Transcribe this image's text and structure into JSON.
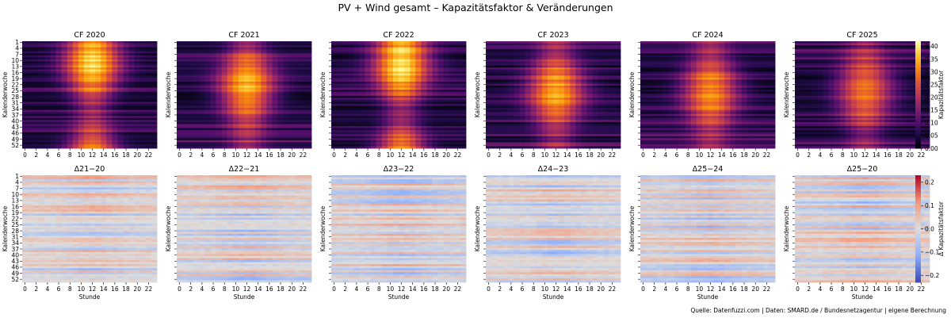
{
  "title": "PV + Wind gesamt – Kapazitätsfaktor & Veränderungen",
  "source": "Quelle: Datenfuzzi.com | Daten: SMARD.de / Bundesnetzagentur | eigene Berechnung",
  "colors": {
    "cf_map": "inferno",
    "delta_map": "coolwarm"
  },
  "chart_data": [
    {
      "type": "heatmap",
      "title": "CF 2020",
      "xlabel": "",
      "ylabel": "Kalenderwoche",
      "x_ticks": [
        "0",
        "2",
        "4",
        "6",
        "8",
        "10",
        "12",
        "14",
        "16",
        "18",
        "20",
        "22"
      ],
      "y_ticks": [
        "1",
        "4",
        "7",
        "10",
        "13",
        "16",
        "19",
        "22",
        "25",
        "28",
        "31",
        "34",
        "37",
        "40",
        "43",
        "46",
        "49",
        "52"
      ],
      "x_range": [
        0,
        23
      ],
      "y_range": [
        1,
        53
      ],
      "peak_hour": 12,
      "peak_week": 10,
      "peak_value": 0.4
    },
    {
      "type": "heatmap",
      "title": "CF 2021",
      "xlabel": "",
      "ylabel": "Kalenderwoche",
      "x_ticks": [
        "0",
        "2",
        "4",
        "6",
        "8",
        "10",
        "12",
        "14",
        "16",
        "18",
        "20",
        "22"
      ],
      "x_range": [
        0,
        23
      ],
      "y_range": [
        1,
        53
      ],
      "peak_hour": 12,
      "peak_week": 22,
      "peak_value": 0.36
    },
    {
      "type": "heatmap",
      "title": "CF 2022",
      "xlabel": "",
      "ylabel": "Kalenderwoche",
      "x_ticks": [
        "0",
        "2",
        "4",
        "6",
        "8",
        "10",
        "12",
        "14",
        "16",
        "18",
        "20",
        "22"
      ],
      "x_range": [
        0,
        23
      ],
      "y_range": [
        1,
        53
      ],
      "peak_hour": 12,
      "peak_week": 10,
      "peak_value": 0.41
    },
    {
      "type": "heatmap",
      "title": "CF 2023",
      "xlabel": "",
      "ylabel": "Kalenderwoche",
      "x_ticks": [
        "0",
        "2",
        "4",
        "6",
        "8",
        "10",
        "12",
        "14",
        "16",
        "18",
        "20",
        "22"
      ],
      "x_range": [
        0,
        23
      ],
      "y_range": [
        1,
        53
      ],
      "peak_hour": 12,
      "peak_week": 24,
      "peak_value": 0.34
    },
    {
      "type": "heatmap",
      "title": "CF 2024",
      "xlabel": "",
      "ylabel": "Kalenderwoche",
      "x_ticks": [
        "0",
        "2",
        "4",
        "6",
        "8",
        "10",
        "12",
        "14",
        "16",
        "18",
        "20",
        "22"
      ],
      "x_range": [
        0,
        23
      ],
      "y_range": [
        1,
        53
      ],
      "peak_hour": 12,
      "peak_week": 24,
      "peak_value": 0.32
    },
    {
      "type": "heatmap",
      "title": "CF 2025",
      "xlabel": "",
      "ylabel": "Kalenderwoche",
      "x_ticks": [
        "0",
        "2",
        "4",
        "6",
        "8",
        "10",
        "12",
        "14",
        "16",
        "18",
        "20",
        "22"
      ],
      "x_range": [
        0,
        23
      ],
      "y_range": [
        1,
        53
      ],
      "peak_hour": 12,
      "peak_week": 24,
      "peak_value": 0.3
    },
    {
      "type": "heatmap",
      "title": "Δ21−20",
      "xlabel": "Stunde",
      "ylabel": "Kalenderwoche",
      "x_ticks": [
        "0",
        "2",
        "4",
        "6",
        "8",
        "10",
        "12",
        "14",
        "16",
        "18",
        "20",
        "22"
      ],
      "y_ticks": [
        "1",
        "4",
        "7",
        "10",
        "13",
        "16",
        "19",
        "22",
        "25",
        "28",
        "31",
        "34",
        "37",
        "40",
        "43",
        "46",
        "49",
        "52"
      ],
      "x_range": [
        0,
        23
      ],
      "y_range": [
        1,
        53
      ]
    },
    {
      "type": "heatmap",
      "title": "Δ22−21",
      "xlabel": "Stunde",
      "ylabel": "Kalenderwoche",
      "x_ticks": [
        "0",
        "2",
        "4",
        "6",
        "8",
        "10",
        "12",
        "14",
        "16",
        "18",
        "20",
        "22"
      ],
      "x_range": [
        0,
        23
      ],
      "y_range": [
        1,
        53
      ]
    },
    {
      "type": "heatmap",
      "title": "Δ23−22",
      "xlabel": "Stunde",
      "ylabel": "Kalenderwoche",
      "x_ticks": [
        "0",
        "2",
        "4",
        "6",
        "8",
        "10",
        "12",
        "14",
        "16",
        "18",
        "20",
        "22"
      ],
      "x_range": [
        0,
        23
      ],
      "y_range": [
        1,
        53
      ]
    },
    {
      "type": "heatmap",
      "title": "Δ24−23",
      "xlabel": "Stunde",
      "ylabel": "Kalenderwoche",
      "x_ticks": [
        "0",
        "2",
        "4",
        "6",
        "8",
        "10",
        "12",
        "14",
        "16",
        "18",
        "20",
        "22"
      ],
      "x_range": [
        0,
        23
      ],
      "y_range": [
        1,
        53
      ]
    },
    {
      "type": "heatmap",
      "title": "Δ25−24",
      "xlabel": "Stunde",
      "ylabel": "Kalenderwoche",
      "x_ticks": [
        "0",
        "2",
        "4",
        "6",
        "8",
        "10",
        "12",
        "14",
        "16",
        "18",
        "20",
        "22"
      ],
      "x_range": [
        0,
        23
      ],
      "y_range": [
        1,
        53
      ]
    },
    {
      "type": "heatmap",
      "title": "Δ25−20",
      "xlabel": "Stunde",
      "ylabel": "Kalenderwoche",
      "x_ticks": [
        "0",
        "2",
        "4",
        "6",
        "8",
        "10",
        "12",
        "14",
        "16",
        "18",
        "20",
        "22"
      ],
      "x_range": [
        0,
        23
      ],
      "y_range": [
        1,
        53
      ]
    }
  ],
  "colorbars": [
    {
      "label": "Kapazitätsfaktor",
      "ticks": [
        "0.40",
        "0.35",
        "0.30",
        "0.25",
        "0.20",
        "0.15",
        "0.10",
        "0.05",
        "0.00"
      ],
      "range": [
        0,
        0.42
      ]
    },
    {
      "label": "Δ Kapazitätsfaktor",
      "ticks": [
        "0.2",
        "0.1",
        "0.0",
        "−0.1",
        "−0.2"
      ],
      "range": [
        -0.23,
        0.23
      ]
    }
  ]
}
